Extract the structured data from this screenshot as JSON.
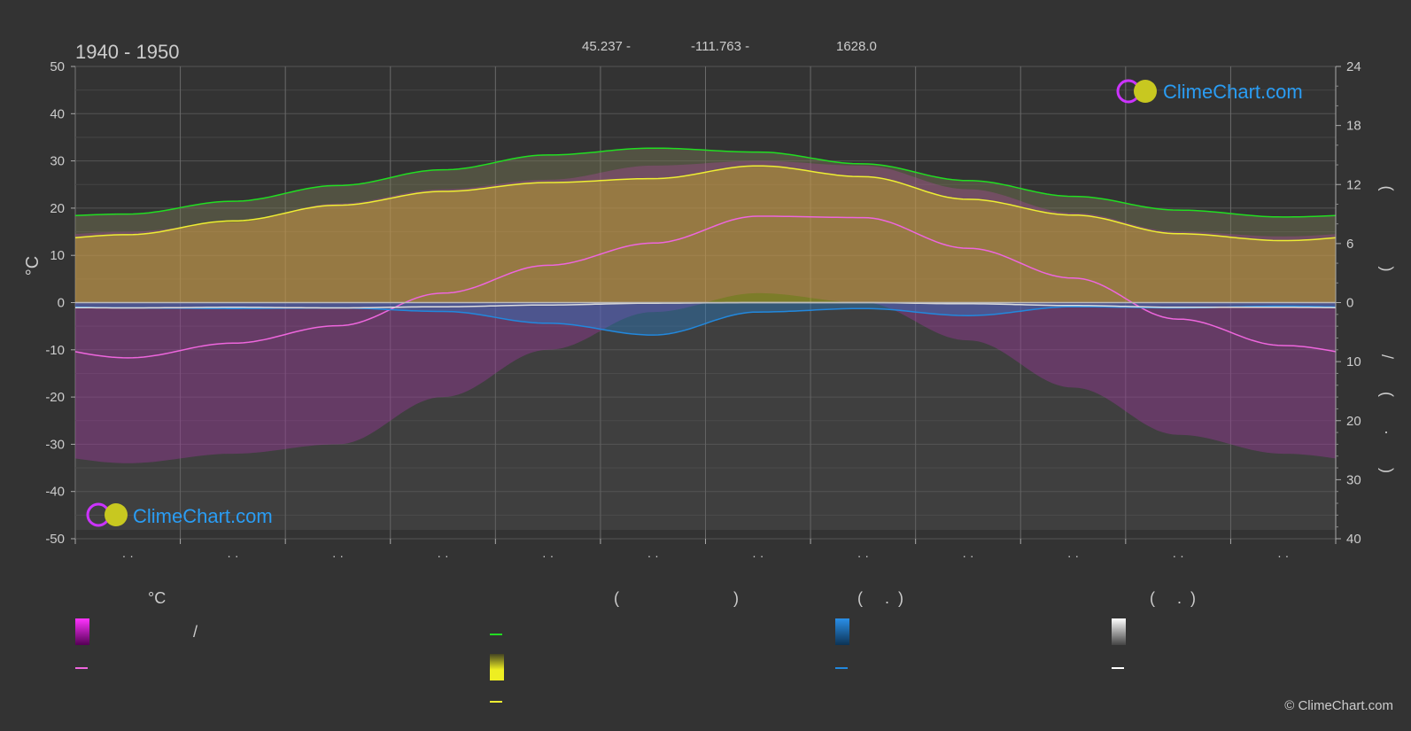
{
  "header": {
    "period": "1940 - 1950",
    "latitude": "45.237 -",
    "longitude": "-111.763 -",
    "elevation": "1628.0"
  },
  "watermark": {
    "brand": "ClimeChart.com"
  },
  "copyright": "© ClimeChart.com",
  "axes": {
    "left_unit": "°C",
    "right_top_label": "( )",
    "right_bottom_label": "/ ( · )",
    "x_tick_label": "· ·"
  },
  "legend": {
    "col1_header": "°C",
    "col1_row1": "/",
    "col2_header": "( )",
    "col3_header": "( .)",
    "col4_header": "( .)"
  },
  "colors": {
    "background": "#333333",
    "grid": "#555555",
    "daylight": "#22dd22",
    "sunshine": "#eeee33",
    "temp_mean": "#ee66dd",
    "temp_band": "#dd22dd",
    "rain": "#2288dd",
    "snow": "#ffffff",
    "brand": "#2a9df4"
  },
  "chart_data": {
    "type": "line",
    "x": [
      0.5,
      1.5,
      2.5,
      3.5,
      4.5,
      5.5,
      6.5,
      7.5,
      8.5,
      9.5,
      10.5,
      11.5
    ],
    "xlim": [
      0,
      12
    ],
    "left_axis": {
      "unit": "°C",
      "ylim": [
        -50,
        50
      ],
      "ticks": [
        50,
        40,
        30,
        20,
        10,
        0,
        -10,
        -20,
        -30,
        -40,
        -50
      ]
    },
    "right_axis_hours": {
      "range": [
        0,
        24
      ],
      "ticks": [
        24,
        18,
        12,
        6,
        0
      ]
    },
    "right_axis_precip": {
      "range": [
        0,
        40
      ],
      "ticks": [
        0,
        10,
        20,
        30,
        40
      ]
    },
    "grid": true,
    "series": [
      {
        "key": "daylight",
        "axis": "hours",
        "values": [
          9.0,
          10.3,
          11.9,
          13.5,
          15.0,
          15.7,
          15.3,
          14.1,
          12.4,
          10.8,
          9.4,
          8.7
        ]
      },
      {
        "key": "sunshine",
        "axis": "hours",
        "values": [
          6.9,
          8.3,
          9.9,
          11.3,
          12.2,
          12.6,
          13.9,
          12.8,
          10.5,
          8.9,
          7.0,
          6.3
        ]
      },
      {
        "key": "temp_mean",
        "axis": "celsius",
        "values": [
          -11.7,
          -8.6,
          -4.9,
          2.0,
          7.9,
          12.6,
          18.3,
          18.0,
          11.5,
          5.2,
          -3.5,
          -9.1
        ]
      },
      {
        "key": "temp_max_band",
        "axis": "celsius",
        "values": [
          15,
          17,
          21,
          24,
          26,
          29,
          30,
          29,
          24,
          19,
          15,
          14
        ]
      },
      {
        "key": "temp_min_band",
        "axis": "celsius",
        "values": [
          -34,
          -32,
          -30,
          -20,
          -10,
          -2,
          2,
          0,
          -8,
          -18,
          -28,
          -32
        ]
      },
      {
        "key": "rain",
        "axis": "precip",
        "values": [
          0.9,
          1.0,
          0.9,
          1.5,
          3.5,
          5.5,
          1.6,
          1.0,
          2.2,
          0.7,
          0.9,
          0.6
        ]
      },
      {
        "key": "snow",
        "axis": "precip",
        "values": [
          0.9,
          0.8,
          0.9,
          0.7,
          0.4,
          0.1,
          0.0,
          0.0,
          0.2,
          0.5,
          0.8,
          0.8
        ]
      }
    ]
  }
}
